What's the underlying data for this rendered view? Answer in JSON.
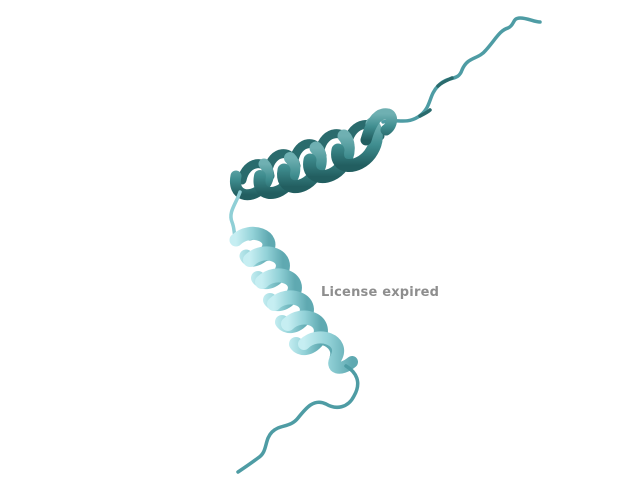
{
  "viewer": {
    "watermark_text": "License expired"
  },
  "molecule": {
    "representation": "cartoon",
    "colors": {
      "helix_dark": "#3f8d8f",
      "helix_dark_shade": "#2a6b6d",
      "helix_light": "#8fcfd6",
      "helix_light_shade": "#5faab2",
      "loop": "#4e9ca4",
      "background": "#ffffff"
    }
  }
}
